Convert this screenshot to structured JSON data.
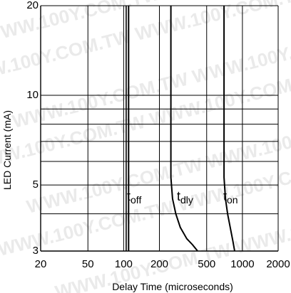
{
  "chart_data": {
    "type": "line",
    "title": "",
    "xlabel": "Delay Time (microseconds)",
    "ylabel": "LED Current (mA)",
    "x_scale": "log",
    "y_scale": "log",
    "xlim": [
      20,
      2000
    ],
    "ylim": [
      3,
      20
    ],
    "grid": true,
    "x_ticks": [
      20,
      50,
      100,
      200,
      500,
      1000,
      2000
    ],
    "x_tick_labels": [
      "20",
      "50",
      "100",
      "200",
      "500",
      "1000",
      "2000"
    ],
    "x_grid": [
      50,
      100,
      200,
      500,
      1000,
      2000
    ],
    "y_ticks": [
      3,
      5,
      10,
      20
    ],
    "y_tick_labels": [
      "3",
      "5",
      "10",
      "20"
    ],
    "y_grid": [
      4,
      5,
      6,
      7,
      8,
      9,
      10
    ],
    "series": [
      {
        "name": "t",
        "sub": "off",
        "x": [
          110,
          110
        ],
        "y": [
          20,
          3
        ]
      },
      {
        "name": "t",
        "sub": "dly",
        "x": [
          250,
          250,
          258,
          275,
          300,
          340,
          380,
          420
        ],
        "y": [
          20,
          5.3,
          4.5,
          4.0,
          3.6,
          3.3,
          3.15,
          3.0
        ]
      },
      {
        "name": "t",
        "sub": "on",
        "x": [
          700,
          700,
          720,
          750,
          790,
          830,
          860
        ],
        "y": [
          20,
          5.3,
          4.5,
          4.0,
          3.6,
          3.25,
          3.0
        ]
      }
    ],
    "extra_vertical_lines": [
      [
        105,
        3,
        20
      ]
    ],
    "watermark": "WWW.100Y.COM.TW"
  }
}
